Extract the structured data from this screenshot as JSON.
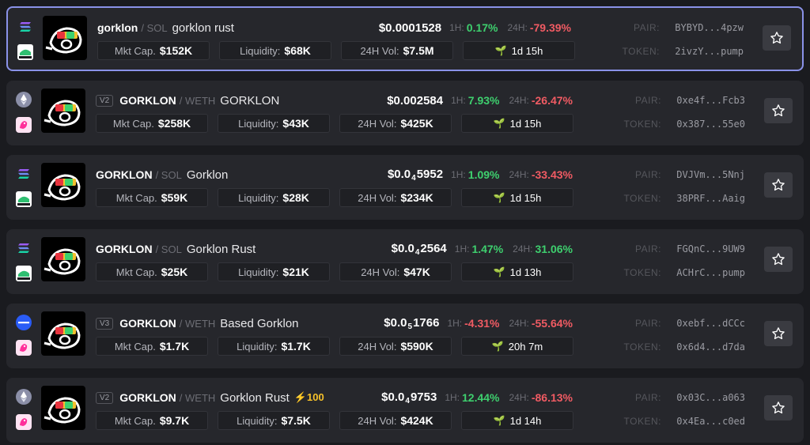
{
  "labels": {
    "mkt_cap": "Mkt Cap.",
    "liquidity": "Liquidity:",
    "vol": "24H Vol:",
    "h1": "1H:",
    "h24": "24H:",
    "pair": "PAIR:",
    "token": "TOKEN:"
  },
  "rows": [
    {
      "chain": "solana-icon",
      "dex": "swap-icon",
      "version": "",
      "symbol": "gorklon",
      "quote": "/ SOL",
      "name": "gorklon rust",
      "boost": "",
      "price_main": "$0.0001528",
      "price_sub": "",
      "price_tail": "",
      "h1": "0.17%",
      "h1_dir": "pos",
      "h24": "-79.39%",
      "h24_dir": "neg",
      "mkt_cap": "$152K",
      "liquidity": "$68K",
      "vol": "$7.5M",
      "age": "1d 15h",
      "pair": "BYBYD...4pzw",
      "token": "2ivzY...pump",
      "selected": true
    },
    {
      "chain": "ethereum-icon",
      "dex": "uniswap-icon",
      "version": "V2",
      "symbol": "GORKLON",
      "quote": "/ WETH",
      "name": "GORKLON",
      "boost": "",
      "price_main": "$0.002584",
      "price_sub": "",
      "price_tail": "",
      "h1": "7.93%",
      "h1_dir": "pos",
      "h24": "-26.47%",
      "h24_dir": "neg",
      "mkt_cap": "$258K",
      "liquidity": "$43K",
      "vol": "$425K",
      "age": "1d 15h",
      "pair": "0xe4f...Fcb3",
      "token": "0x387...55e0",
      "selected": false
    },
    {
      "chain": "solana-icon",
      "dex": "swap-icon",
      "version": "",
      "symbol": "GORKLON",
      "quote": "/ SOL",
      "name": "Gorklon",
      "boost": "",
      "price_main": "$0.0",
      "price_sub": "4",
      "price_tail": "5952",
      "h1": "1.09%",
      "h1_dir": "pos",
      "h24": "-33.43%",
      "h24_dir": "neg",
      "mkt_cap": "$59K",
      "liquidity": "$28K",
      "vol": "$234K",
      "age": "1d 15h",
      "pair": "DVJVm...5Nnj",
      "token": "38PRF...Aaig",
      "selected": false
    },
    {
      "chain": "solana-icon",
      "dex": "swap-icon",
      "version": "",
      "symbol": "GORKLON",
      "quote": "/ SOL",
      "name": "Gorklon Rust",
      "boost": "",
      "price_main": "$0.0",
      "price_sub": "4",
      "price_tail": "2564",
      "h1": "1.47%",
      "h1_dir": "pos",
      "h24": "31.06%",
      "h24_dir": "pos",
      "mkt_cap": "$25K",
      "liquidity": "$21K",
      "vol": "$47K",
      "age": "1d 13h",
      "pair": "FGQnC...9UW9",
      "token": "ACHrC...pump",
      "selected": false
    },
    {
      "chain": "base-icon",
      "dex": "uniswap-icon",
      "version": "V3",
      "symbol": "GORKLON",
      "quote": "/ WETH",
      "name": "Based Gorklon",
      "boost": "",
      "price_main": "$0.0",
      "price_sub": "5",
      "price_tail": "1766",
      "h1": "-4.31%",
      "h1_dir": "neg",
      "h24": "-55.64%",
      "h24_dir": "neg",
      "mkt_cap": "$1.7K",
      "liquidity": "$1.7K",
      "vol": "$590K",
      "age": "20h 7m",
      "pair": "0xebf...dCCc",
      "token": "0x6d4...d7da",
      "selected": false
    },
    {
      "chain": "ethereum-icon",
      "dex": "uniswap-icon",
      "version": "V2",
      "symbol": "GORKLON",
      "quote": "/ WETH",
      "name": "Gorklon Rust",
      "boost": "100",
      "price_main": "$0.0",
      "price_sub": "4",
      "price_tail": "9753",
      "h1": "12.44%",
      "h1_dir": "pos",
      "h24": "-86.13%",
      "h24_dir": "neg",
      "mkt_cap": "$9.7K",
      "liquidity": "$7.5K",
      "vol": "$424K",
      "age": "1d 14h",
      "pair": "0x03C...a063",
      "token": "0x4Ea...c0ed",
      "selected": false
    }
  ]
}
